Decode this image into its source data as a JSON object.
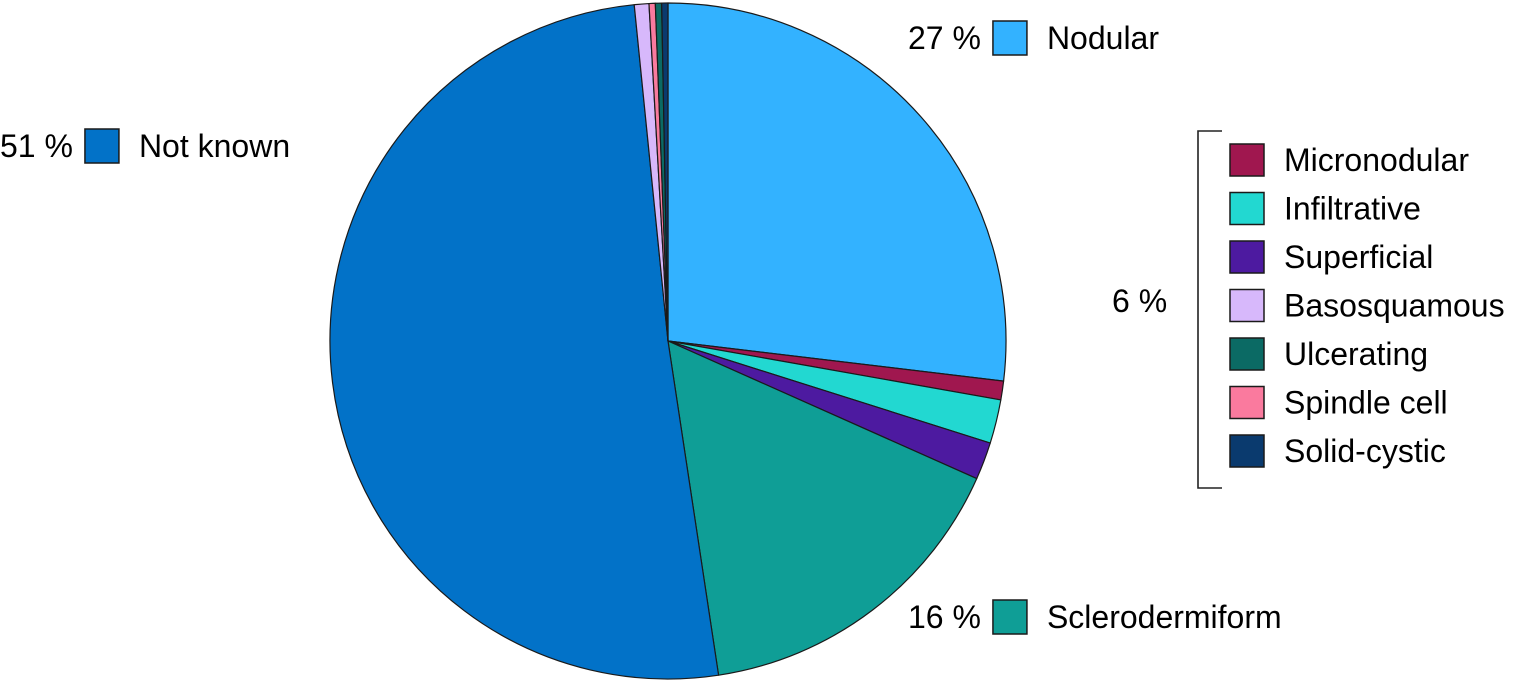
{
  "chart_data": {
    "type": "pie",
    "start_angle": "12 o'clock",
    "direction": "clockwise",
    "slices": [
      {
        "name": "Nodular",
        "value": 27.0,
        "label": "27 %",
        "color": "#33b2ff"
      },
      {
        "name": "Micronodular",
        "value": 0.9,
        "color": "#a0174f"
      },
      {
        "name": "Infiltrative",
        "value": 2.1,
        "color": "#22d8d1"
      },
      {
        "name": "Superficial",
        "value": 1.8,
        "color": "#4d1aa0"
      },
      {
        "name": "Sclerodermiform",
        "value": 16.0,
        "label": "16 %",
        "color": "#0f9e96"
      },
      {
        "name": "Not known",
        "value": 51.0,
        "label": "51 %",
        "color": "#0272c8"
      },
      {
        "name": "Basosquamous",
        "value": 0.7,
        "color": "#d7b8fb"
      },
      {
        "name": "Spindle cell",
        "value": 0.3,
        "color": "#fa7a9e"
      },
      {
        "name": "Ulcerating",
        "value": 0.3,
        "color": "#0b6a64"
      },
      {
        "name": "Solid-cystic",
        "value": 0.3,
        "color": "#0a3a6e"
      }
    ],
    "group": {
      "label": "6 %",
      "members": [
        "Micronodular",
        "Infiltrative",
        "Superficial",
        "Basosquamous",
        "Ulcerating",
        "Spindle cell",
        "Solid-cystic"
      ]
    }
  }
}
